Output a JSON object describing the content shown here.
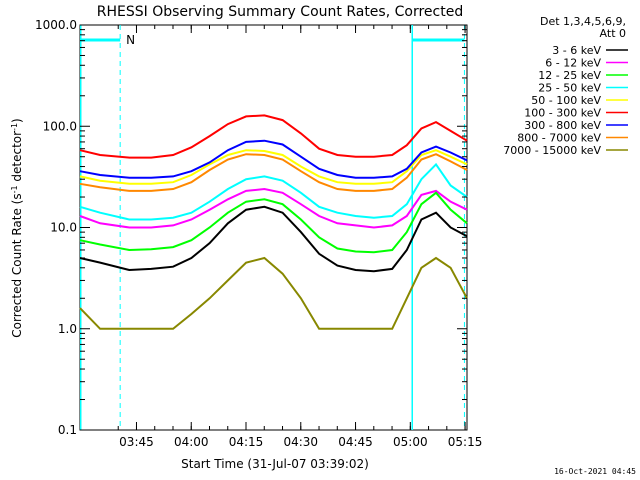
{
  "chart_data": {
    "type": "line",
    "title": "RHESSI Observing Summary Count Rates, Corrected",
    "xlabel": "Start Time (31-Jul-07 03:39:02)",
    "ylabel_main": "Corrected Count Rate (s",
    "ylabel_sup1": "-1",
    "ylabel_mid": " detector",
    "ylabel_sup2": "-1",
    "ylabel_end": ")",
    "y_scale": "log",
    "ylim": [
      0.1,
      1000
    ],
    "xlim_minutes": [
      -9.5,
      96.5
    ],
    "x_ticks": [
      {
        "label": "03:45",
        "minute": 5.97
      },
      {
        "label": "04:00",
        "minute": 20.97
      },
      {
        "label": "04:15",
        "minute": 35.97
      },
      {
        "label": "04:30",
        "minute": 50.97
      },
      {
        "label": "04:45",
        "minute": 65.97
      },
      {
        "label": "05:00",
        "minute": 80.97
      },
      {
        "label": "05:15",
        "minute": 95.97
      }
    ],
    "y_ticks": [
      {
        "label": "0.1",
        "value": 0.1
      },
      {
        "label": "1.0",
        "value": 1
      },
      {
        "label": "10.0",
        "value": 10
      },
      {
        "label": "100.0",
        "value": 100
      },
      {
        "label": "1000.0",
        "value": 1000
      }
    ],
    "legend_header": [
      "Det 1,3,4,5,6,9,",
      "Att 0"
    ],
    "legend_placement": "right",
    "series": [
      {
        "name": "3 - 6 keV",
        "color": "#000000",
        "x": [
          -9.5,
          -4,
          4,
          10,
          16,
          21,
          26,
          31,
          36,
          41,
          46,
          51,
          56,
          61,
          66,
          71,
          76,
          80,
          84,
          88,
          92,
          96.5
        ],
        "y": [
          5,
          4.5,
          3.8,
          3.9,
          4.1,
          5,
          7,
          11,
          15,
          16,
          14,
          9,
          5.5,
          4.2,
          3.8,
          3.7,
          3.9,
          6,
          12,
          14,
          10,
          8.2
        ]
      },
      {
        "name": "6 - 12 keV",
        "color": "#ff00ff",
        "x": [
          -9.5,
          -4,
          4,
          10,
          16,
          21,
          26,
          31,
          36,
          41,
          46,
          51,
          56,
          61,
          66,
          71,
          76,
          80,
          84,
          88,
          92,
          96.5
        ],
        "y": [
          13,
          11,
          10,
          10,
          10.5,
          12,
          15,
          19,
          23,
          24,
          22,
          17,
          13,
          11,
          10.5,
          10,
          10.5,
          13,
          21,
          23,
          18,
          15
        ]
      },
      {
        "name": "12 - 25 keV",
        "color": "#00ff00",
        "x": [
          -9.5,
          -4,
          4,
          10,
          16,
          21,
          26,
          31,
          36,
          41,
          46,
          51,
          56,
          61,
          66,
          71,
          76,
          80,
          84,
          88,
          92,
          96.5
        ],
        "y": [
          7.5,
          6.8,
          6,
          6.1,
          6.4,
          7.5,
          10,
          14,
          18,
          19,
          17,
          12,
          8,
          6.2,
          5.8,
          5.7,
          6,
          9,
          17,
          22,
          15,
          11
        ]
      },
      {
        "name": "25 - 50 keV",
        "color": "#00ffff",
        "x": [
          -9.5,
          -4,
          4,
          10,
          16,
          21,
          26,
          31,
          36,
          41,
          46,
          51,
          56,
          61,
          66,
          71,
          76,
          80,
          84,
          88,
          92,
          96.5
        ],
        "y": [
          16,
          14,
          12,
          12,
          12.5,
          14,
          18,
          24,
          30,
          32,
          29,
          22,
          16,
          14,
          13,
          12.5,
          13,
          17,
          30,
          42,
          26,
          20
        ]
      },
      {
        "name": "50 - 100 keV",
        "color": "#ffff00",
        "x": [
          -9.5,
          -4,
          4,
          10,
          16,
          21,
          26,
          31,
          36,
          41,
          46,
          51,
          56,
          61,
          66,
          71,
          76,
          80,
          84,
          88,
          92,
          96.5
        ],
        "y": [
          32,
          29,
          27,
          27,
          28,
          33,
          42,
          52,
          58,
          57,
          52,
          40,
          32,
          28,
          27,
          27,
          28,
          36,
          52,
          58,
          50,
          42
        ]
      },
      {
        "name": "100 - 300 keV",
        "color": "#ff0000",
        "x": [
          -9.5,
          -4,
          4,
          10,
          16,
          21,
          26,
          31,
          36,
          41,
          46,
          51,
          56,
          61,
          66,
          71,
          76,
          80,
          84,
          88,
          92,
          96.5
        ],
        "y": [
          58,
          52,
          49,
          49,
          52,
          62,
          80,
          105,
          125,
          128,
          115,
          85,
          60,
          52,
          50,
          50,
          52,
          65,
          95,
          110,
          90,
          72
        ]
      },
      {
        "name": "300 - 800 keV",
        "color": "#0000ff",
        "x": [
          -9.5,
          -4,
          4,
          10,
          16,
          21,
          26,
          31,
          36,
          41,
          46,
          51,
          56,
          61,
          66,
          71,
          76,
          80,
          84,
          88,
          92,
          96.5
        ],
        "y": [
          36,
          33,
          31,
          31,
          32,
          36,
          44,
          58,
          70,
          72,
          66,
          50,
          38,
          33,
          31,
          31,
          32,
          38,
          55,
          63,
          55,
          46
        ]
      },
      {
        "name": "800 - 7000 keV",
        "color": "#ff8800",
        "x": [
          -9.5,
          -4,
          4,
          10,
          16,
          21,
          26,
          31,
          36,
          41,
          46,
          51,
          56,
          61,
          66,
          71,
          76,
          80,
          84,
          88,
          92,
          96.5
        ],
        "y": [
          27,
          25,
          23,
          23,
          24,
          28,
          37,
          47,
          53,
          52,
          47,
          36,
          28,
          24,
          23,
          23,
          24,
          31,
          47,
          53,
          45,
          37
        ]
      },
      {
        "name": "7000 - 15000 keV",
        "color": "#888800",
        "x": [
          -9.5,
          -4,
          4,
          10,
          16,
          21,
          26,
          31,
          36,
          41,
          46,
          51,
          56,
          61,
          66,
          71,
          76,
          80,
          84,
          88,
          92,
          96.5
        ],
        "y": [
          1.6,
          1,
          1,
          1,
          1,
          1.4,
          2,
          3,
          4.5,
          5,
          3.5,
          2,
          1,
          1,
          1,
          1,
          1,
          2,
          4,
          5,
          4,
          2
        ]
      }
    ],
    "markers": {
      "saa_label": "N",
      "solid_vlines_minutes": [
        -9.3,
        81.5
      ],
      "dashed_vlines_minutes": [
        1.5,
        95.8
      ],
      "top_bars_minutes": [
        [
          -9.3,
          1.5
        ],
        [
          81.5,
          95.8
        ]
      ],
      "color": "#00ffff"
    }
  },
  "footer_timestamp": "16-Oct-2021 04:45"
}
